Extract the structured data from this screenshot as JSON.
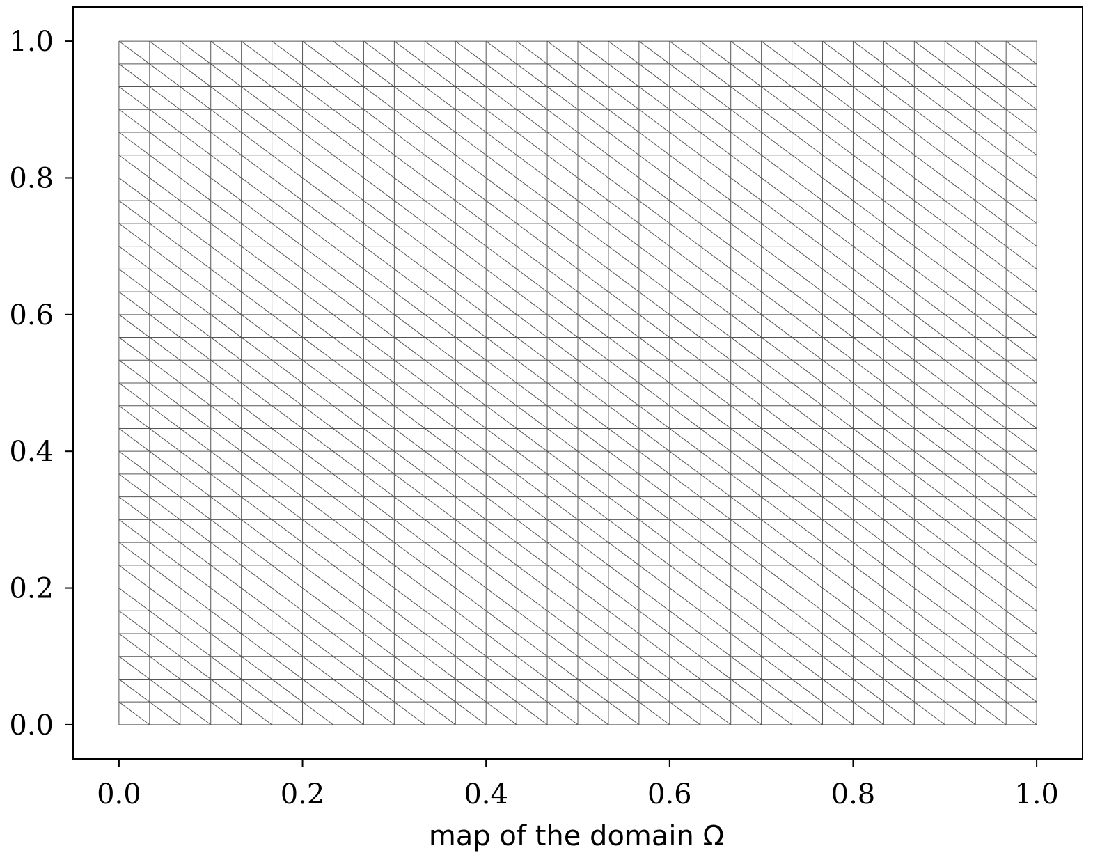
{
  "chart_data": {
    "type": "mesh",
    "description_source": "triangular finite-element mesh on unit square",
    "xlabel": "map of the domain Ω",
    "ylabel": "",
    "title": "",
    "xlim": [
      -0.05,
      1.05
    ],
    "ylim": [
      -0.05,
      1.05
    ],
    "x_ticks": [
      0.0,
      0.2,
      0.4,
      0.6,
      0.8,
      1.0
    ],
    "y_ticks": [
      0.0,
      0.2,
      0.4,
      0.6,
      0.8,
      1.0
    ],
    "x_tick_labels": [
      "0.0",
      "0.2",
      "0.4",
      "0.6",
      "0.8",
      "1.0"
    ],
    "y_tick_labels": [
      "0.0",
      "0.2",
      "0.4",
      "0.6",
      "0.8",
      "1.0"
    ],
    "mesh": {
      "domain_x": [
        0.0,
        1.0
      ],
      "domain_y": [
        0.0,
        1.0
      ],
      "nx": 30,
      "ny": 30,
      "diagonal": "top-left to bottom-right",
      "line_color": "#555555"
    },
    "grid": false,
    "legend": "none"
  }
}
